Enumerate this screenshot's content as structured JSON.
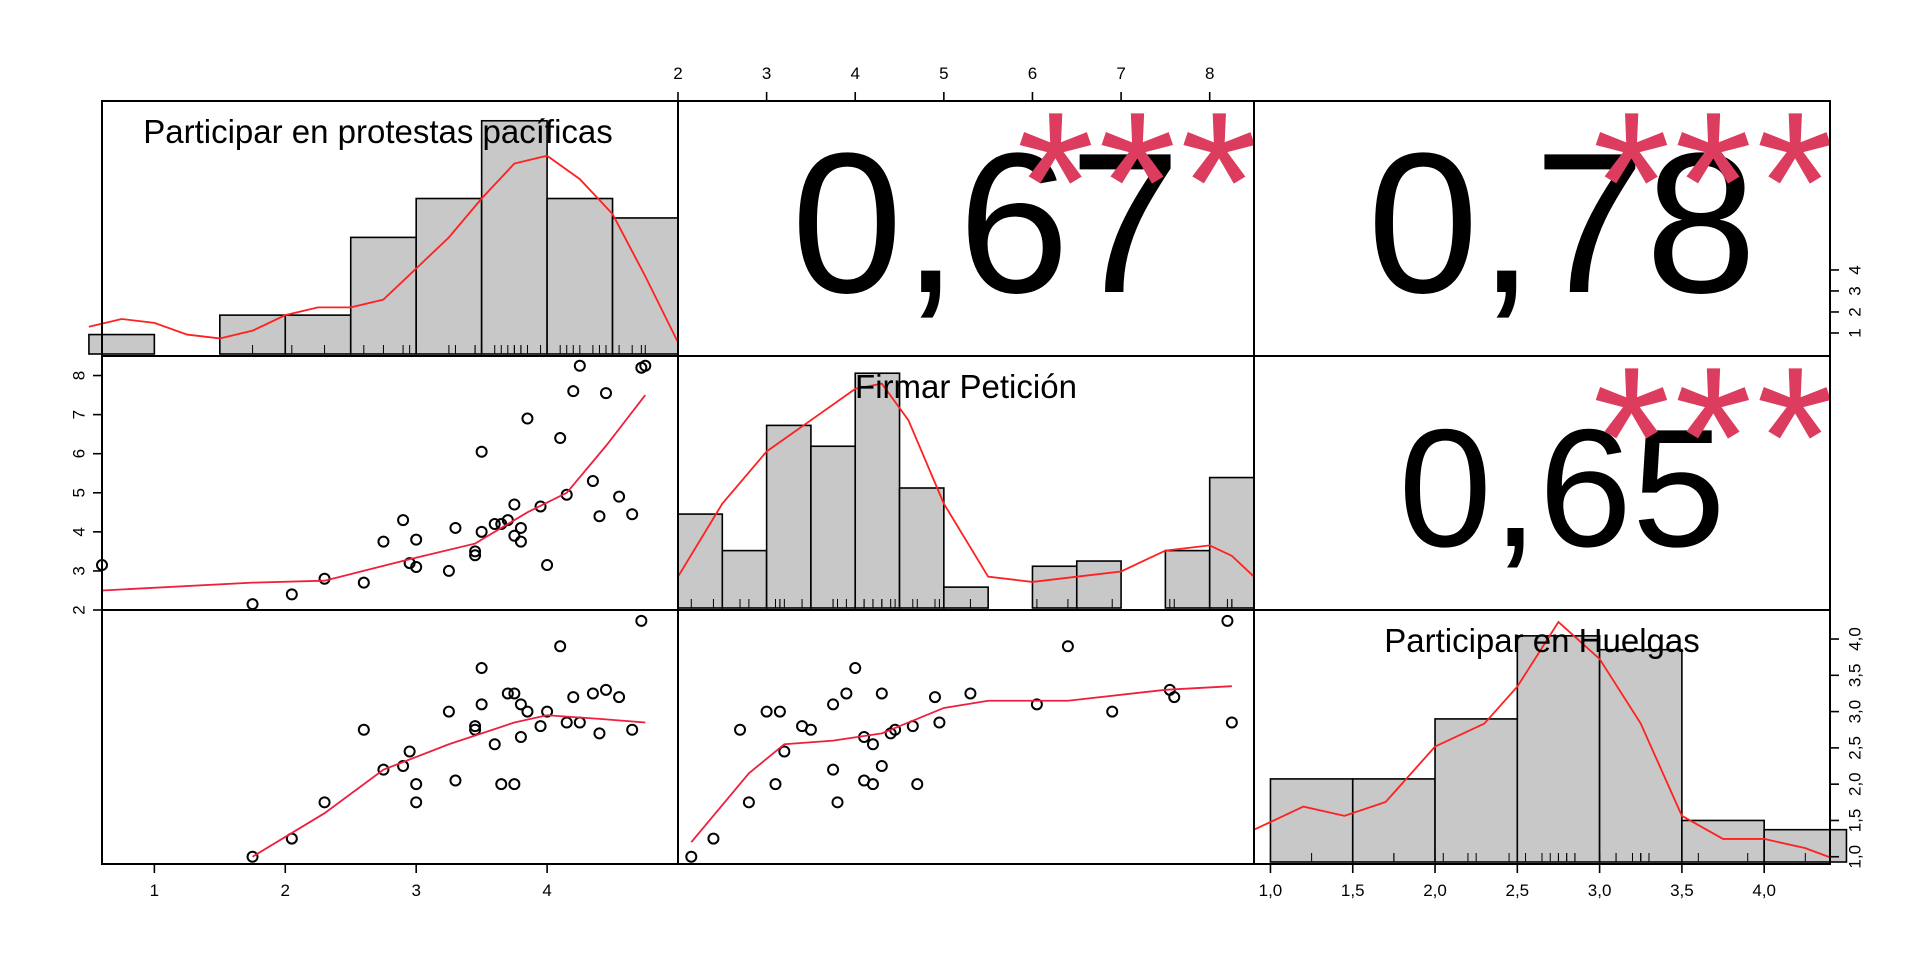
{
  "chart_data": {
    "type": "scatter-matrix",
    "variables": [
      {
        "name": "Participar en protestas pacíficas",
        "range": [
          0.6,
          5.0
        ],
        "ticks": [
          1,
          2,
          3,
          4
        ],
        "tick_labels": [
          "1",
          "2",
          "3",
          "4"
        ],
        "hist": {
          "breaks": [
            0.5,
            1.0,
            1.5,
            2.0,
            2.5,
            3.0,
            3.5,
            4.0,
            4.5,
            5.0
          ],
          "density": [
            0.05,
            0.0,
            0.1,
            0.1,
            0.3,
            0.4,
            0.6,
            0.4,
            0.35
          ]
        },
        "density_ymax": 0.62
      },
      {
        "name": "Firmar Petición",
        "range": [
          2.0,
          8.5
        ],
        "ticks": [
          2,
          3,
          4,
          5,
          6,
          7,
          8
        ],
        "tick_labels": [
          "2",
          "3",
          "4",
          "5",
          "6",
          "7",
          "8"
        ],
        "hist": {
          "breaks": [
            2.0,
            2.5,
            3.0,
            3.5,
            4.0,
            4.5,
            5.0,
            5.5,
            6.0,
            6.5,
            7.0,
            7.5,
            8.0,
            8.5
          ],
          "density": [
            0.18,
            0.11,
            0.35,
            0.31,
            0.45,
            0.23,
            0.04,
            0.0,
            0.08,
            0.09,
            0.0,
            0.11,
            0.25
          ]
        },
        "density_ymax": 0.46
      },
      {
        "name": "Participar en Huelgas",
        "range": [
          0.9,
          4.4
        ],
        "ticks": [
          1.0,
          1.5,
          2.0,
          2.5,
          3.0,
          3.5,
          4.0
        ],
        "tick_labels": [
          "1,0",
          "1,5",
          "2,0",
          "2,5",
          "3,0",
          "3,5",
          "4,0"
        ],
        "hist": {
          "breaks": [
            1.0,
            1.5,
            2.0,
            2.5,
            3.0,
            3.5,
            4.0,
            4.5
          ],
          "density": [
            0.18,
            0.18,
            0.31,
            0.49,
            0.46,
            0.09,
            0.07
          ]
        },
        "density_ymax": 0.52
      }
    ],
    "hist_axis": {
      "ticks": [
        1,
        2,
        3,
        4
      ],
      "tick_labels": [
        "1",
        "2",
        "3",
        "4"
      ]
    },
    "observations": [
      [
        0.6,
        3.15,
        null
      ],
      [
        1.75,
        2.15,
        1.0
      ],
      [
        2.05,
        2.4,
        1.25
      ],
      [
        2.3,
        2.8,
        1.75
      ],
      [
        2.6,
        2.7,
        2.75
      ],
      [
        2.75,
        3.75,
        2.2
      ],
      [
        2.9,
        4.3,
        2.25
      ],
      [
        2.95,
        3.2,
        2.45
      ],
      [
        3.0,
        3.1,
        2.0
      ],
      [
        3.0,
        3.8,
        1.75
      ],
      [
        3.25,
        3.0,
        3.0
      ],
      [
        3.3,
        4.1,
        2.05
      ],
      [
        3.45,
        3.4,
        2.8
      ],
      [
        3.45,
        3.5,
        2.75
      ],
      [
        3.5,
        4.0,
        3.6
      ],
      [
        3.5,
        6.05,
        3.1
      ],
      [
        3.6,
        4.2,
        2.55
      ],
      [
        3.65,
        4.2,
        2.0
      ],
      [
        3.7,
        4.3,
        3.25
      ],
      [
        3.75,
        3.9,
        3.25
      ],
      [
        3.75,
        4.7,
        2.0
      ],
      [
        3.8,
        4.1,
        2.65
      ],
      [
        3.8,
        3.75,
        3.1
      ],
      [
        3.85,
        6.9,
        3.0
      ],
      [
        3.95,
        4.65,
        2.8
      ],
      [
        4.0,
        3.15,
        3.0
      ],
      [
        4.1,
        6.4,
        3.9
      ],
      [
        4.15,
        4.95,
        2.85
      ],
      [
        4.2,
        7.6,
        3.2
      ],
      [
        4.25,
        8.25,
        2.85
      ],
      [
        4.35,
        5.3,
        3.25
      ],
      [
        4.4,
        4.4,
        2.7
      ],
      [
        4.45,
        7.55,
        3.3
      ],
      [
        4.55,
        4.9,
        3.2
      ],
      [
        4.65,
        4.45,
        2.75
      ],
      [
        4.72,
        8.2,
        4.25
      ],
      [
        4.75,
        8.25,
        null
      ]
    ],
    "smooth": {
      "v1_v2": [
        [
          0.6,
          2.5
        ],
        [
          1.75,
          2.7
        ],
        [
          2.3,
          2.75
        ],
        [
          2.95,
          3.3
        ],
        [
          3.45,
          3.7
        ],
        [
          3.85,
          4.5
        ],
        [
          4.15,
          5.0
        ],
        [
          4.45,
          6.2
        ],
        [
          4.75,
          7.5
        ]
      ],
      "v1_v3": [
        [
          1.75,
          1.0
        ],
        [
          2.3,
          1.6
        ],
        [
          2.75,
          2.2
        ],
        [
          3.25,
          2.55
        ],
        [
          3.75,
          2.85
        ],
        [
          4.0,
          2.95
        ],
        [
          4.4,
          2.9
        ],
        [
          4.75,
          2.85
        ]
      ],
      "v2_v3": [
        [
          2.15,
          1.2
        ],
        [
          2.8,
          2.15
        ],
        [
          3.2,
          2.55
        ],
        [
          3.75,
          2.6
        ],
        [
          4.3,
          2.7
        ],
        [
          5.0,
          3.05
        ],
        [
          5.5,
          3.15
        ],
        [
          6.4,
          3.15
        ],
        [
          7.5,
          3.3
        ],
        [
          8.25,
          3.35
        ]
      ]
    },
    "density_curves": {
      "v1": [
        [
          0.5,
          0.07
        ],
        [
          0.75,
          0.09
        ],
        [
          1.0,
          0.08
        ],
        [
          1.25,
          0.05
        ],
        [
          1.5,
          0.04
        ],
        [
          1.75,
          0.06
        ],
        [
          2.0,
          0.1
        ],
        [
          2.25,
          0.12
        ],
        [
          2.5,
          0.12
        ],
        [
          2.75,
          0.14
        ],
        [
          3.0,
          0.22
        ],
        [
          3.25,
          0.3
        ],
        [
          3.5,
          0.4
        ],
        [
          3.75,
          0.49
        ],
        [
          4.0,
          0.51
        ],
        [
          4.25,
          0.45
        ],
        [
          4.5,
          0.36
        ],
        [
          4.75,
          0.2
        ],
        [
          5.0,
          0.03
        ]
      ],
      "v2": [
        [
          2.0,
          0.06
        ],
        [
          2.5,
          0.2
        ],
        [
          3.0,
          0.3
        ],
        [
          3.5,
          0.36
        ],
        [
          4.0,
          0.42
        ],
        [
          4.3,
          0.43
        ],
        [
          4.6,
          0.36
        ],
        [
          5.0,
          0.2
        ],
        [
          5.5,
          0.06
        ],
        [
          6.0,
          0.05
        ],
        [
          6.5,
          0.06
        ],
        [
          7.0,
          0.07
        ],
        [
          7.5,
          0.11
        ],
        [
          8.0,
          0.12
        ],
        [
          8.25,
          0.1
        ],
        [
          8.5,
          0.06
        ]
      ],
      "v3": [
        [
          0.9,
          0.07
        ],
        [
          1.2,
          0.12
        ],
        [
          1.45,
          0.1
        ],
        [
          1.7,
          0.13
        ],
        [
          2.0,
          0.25
        ],
        [
          2.3,
          0.3
        ],
        [
          2.5,
          0.38
        ],
        [
          2.75,
          0.52
        ],
        [
          3.0,
          0.44
        ],
        [
          3.25,
          0.3
        ],
        [
          3.5,
          0.1
        ],
        [
          3.75,
          0.05
        ],
        [
          4.0,
          0.05
        ],
        [
          4.25,
          0.03
        ],
        [
          4.4,
          0.01
        ]
      ]
    },
    "correlations": [
      {
        "row": 0,
        "col": 1,
        "value": "0,67",
        "stars": "***"
      },
      {
        "row": 0,
        "col": 2,
        "value": "0,78",
        "stars": "***"
      },
      {
        "row": 1,
        "col": 2,
        "value": "0,65",
        "stars": "***"
      }
    ],
    "colors": {
      "bars": "#c8c8c8",
      "density": "#ff2020",
      "smooth": "#ee1f3f",
      "stars": "#dc3c5e"
    }
  }
}
